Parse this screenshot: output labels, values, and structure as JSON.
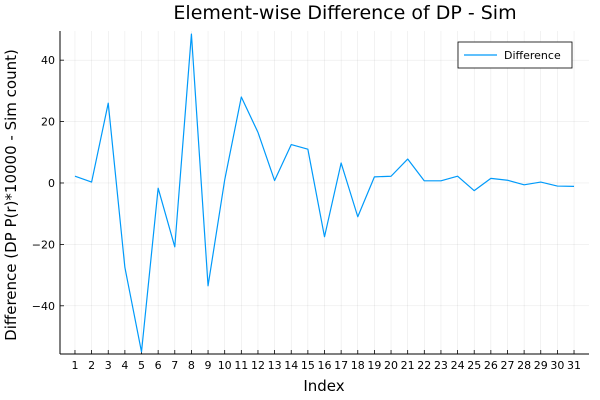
{
  "chart_data": {
    "type": "line",
    "title": "Element-wise Difference of DP - Sim",
    "xlabel": "Index",
    "ylabel": "Difference (DP P(r)*10000 - Sim count)",
    "x": [
      1,
      2,
      3,
      4,
      5,
      6,
      7,
      8,
      9,
      10,
      11,
      12,
      13,
      14,
      15,
      16,
      17,
      18,
      19,
      20,
      21,
      22,
      23,
      24,
      25,
      26,
      27,
      28,
      29,
      30,
      31
    ],
    "xticks": [
      "1",
      "2",
      "3",
      "4",
      "5",
      "6",
      "7",
      "8",
      "9",
      "10",
      "11",
      "12",
      "13",
      "14",
      "15",
      "16",
      "17",
      "18",
      "19",
      "20",
      "21",
      "22",
      "23",
      "24",
      "25",
      "26",
      "27",
      "28",
      "29",
      "30",
      "31"
    ],
    "xlim": [
      0.1,
      31.9
    ],
    "ylim": [
      -55.7,
      49.5
    ],
    "yticks": [
      -40,
      -20,
      0,
      20,
      40
    ],
    "ytick_labels": [
      "−40",
      "−20",
      "0",
      "20",
      "40"
    ],
    "grid": true,
    "legend": {
      "position": "top-right",
      "entries": [
        "Difference"
      ]
    },
    "series": [
      {
        "name": "Difference",
        "color": "#009AFA",
        "values": [
          2.2,
          0.3,
          26.0,
          -27.5,
          -55.0,
          -1.7,
          -20.8,
          48.5,
          -33.5,
          1.0,
          28.0,
          16.5,
          0.8,
          12.5,
          11.0,
          -17.5,
          6.5,
          -11.0,
          2.0,
          2.2,
          7.8,
          0.7,
          0.7,
          2.2,
          -2.5,
          1.5,
          0.9,
          -0.6,
          0.3,
          -1.0,
          -1.1
        ]
      }
    ]
  }
}
